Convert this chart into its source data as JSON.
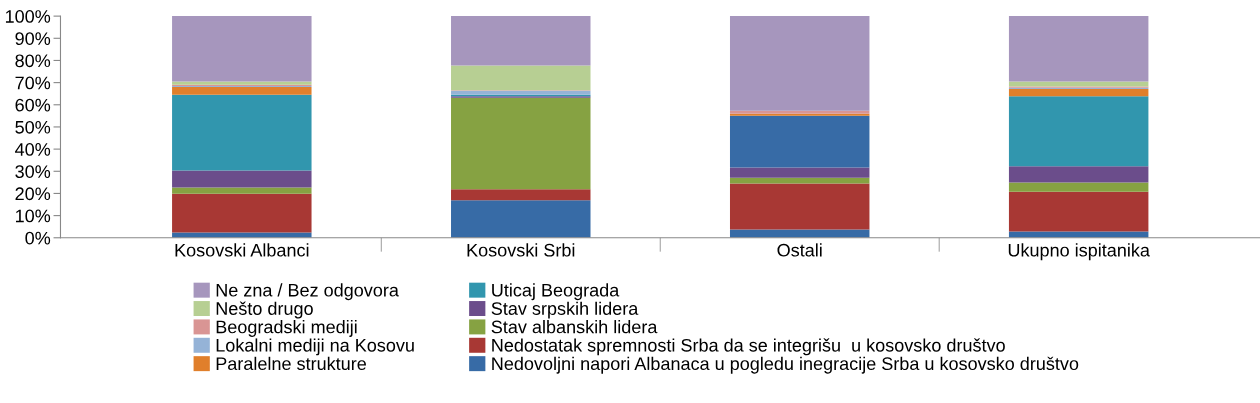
{
  "chart_data": {
    "type": "bar",
    "stacked": true,
    "categories": [
      "Kosovski Albanci",
      "Kosovski Srbi",
      "Ostali",
      "Ukupno ispitanika"
    ],
    "series": [
      {
        "name": "Nedovoljni napori Albanaca u pogledu inegracije Srba u kosovsko društvo",
        "color": "#376ba6",
        "values": [
          2.4,
          16.9,
          3.7,
          2.8
        ]
      },
      {
        "name": "Nedostatak spremnosti Srba da se integrišu  u kosovsko društvo",
        "color": "#a83834",
        "values": [
          17.5,
          5.0,
          20.8,
          18.0
        ]
      },
      {
        "name": "Stav albanskih lidera",
        "color": "#86a242",
        "values": [
          2.8,
          41.3,
          2.6,
          4.1
        ]
      },
      {
        "name": "Stav srpskih lidera",
        "color": "#6b4d8b",
        "values": [
          7.7,
          0.7,
          4.6,
          7.4
        ]
      },
      {
        "name": "Uticaj Beograda",
        "color": "#3196ae",
        "colors": [
          "#3196ae",
          "#3196ae",
          "#376ba6",
          "#3196ae"
        ],
        "values": [
          34.1,
          0.6,
          23.4,
          31.5
        ]
      },
      {
        "name": "Paralelne strukture",
        "color": "#e07f2b",
        "values": [
          3.5,
          null,
          0.9,
          3.3
        ]
      },
      {
        "name": "Lokalni mediji na Kosovu",
        "color": "#95b3d7",
        "values": [
          0.5,
          1.8,
          0,
          0.6
        ]
      },
      {
        "name": "Beogradski mediji",
        "color": "#d99594",
        "values": [
          0.5,
          0.3,
          1.3,
          0.6
        ]
      },
      {
        "name": "Nešto drugo",
        "color": "#b7cf93",
        "values": [
          1.5,
          11.1,
          0,
          2.2
        ]
      },
      {
        "name": "Ne zna / Bez odgovora",
        "color": "#a696bd",
        "values": [
          29.5,
          22.3,
          42.7,
          29.5
        ]
      }
    ],
    "ylim": [
      0,
      100
    ],
    "yticks": [
      {
        "value": 0,
        "label": "0%"
      },
      {
        "value": 10,
        "label": "10%"
      },
      {
        "value": 20,
        "label": "20%"
      },
      {
        "value": 30,
        "label": "30%"
      },
      {
        "value": 40,
        "label": "40%"
      },
      {
        "value": 50,
        "label": "50%"
      },
      {
        "value": 60,
        "label": "60%"
      },
      {
        "value": 70,
        "label": "70%"
      },
      {
        "value": 80,
        "label": "80%"
      },
      {
        "value": 90,
        "label": "90%"
      },
      {
        "value": 100,
        "label": "100%"
      }
    ],
    "grid": false,
    "legend": "bottom"
  }
}
